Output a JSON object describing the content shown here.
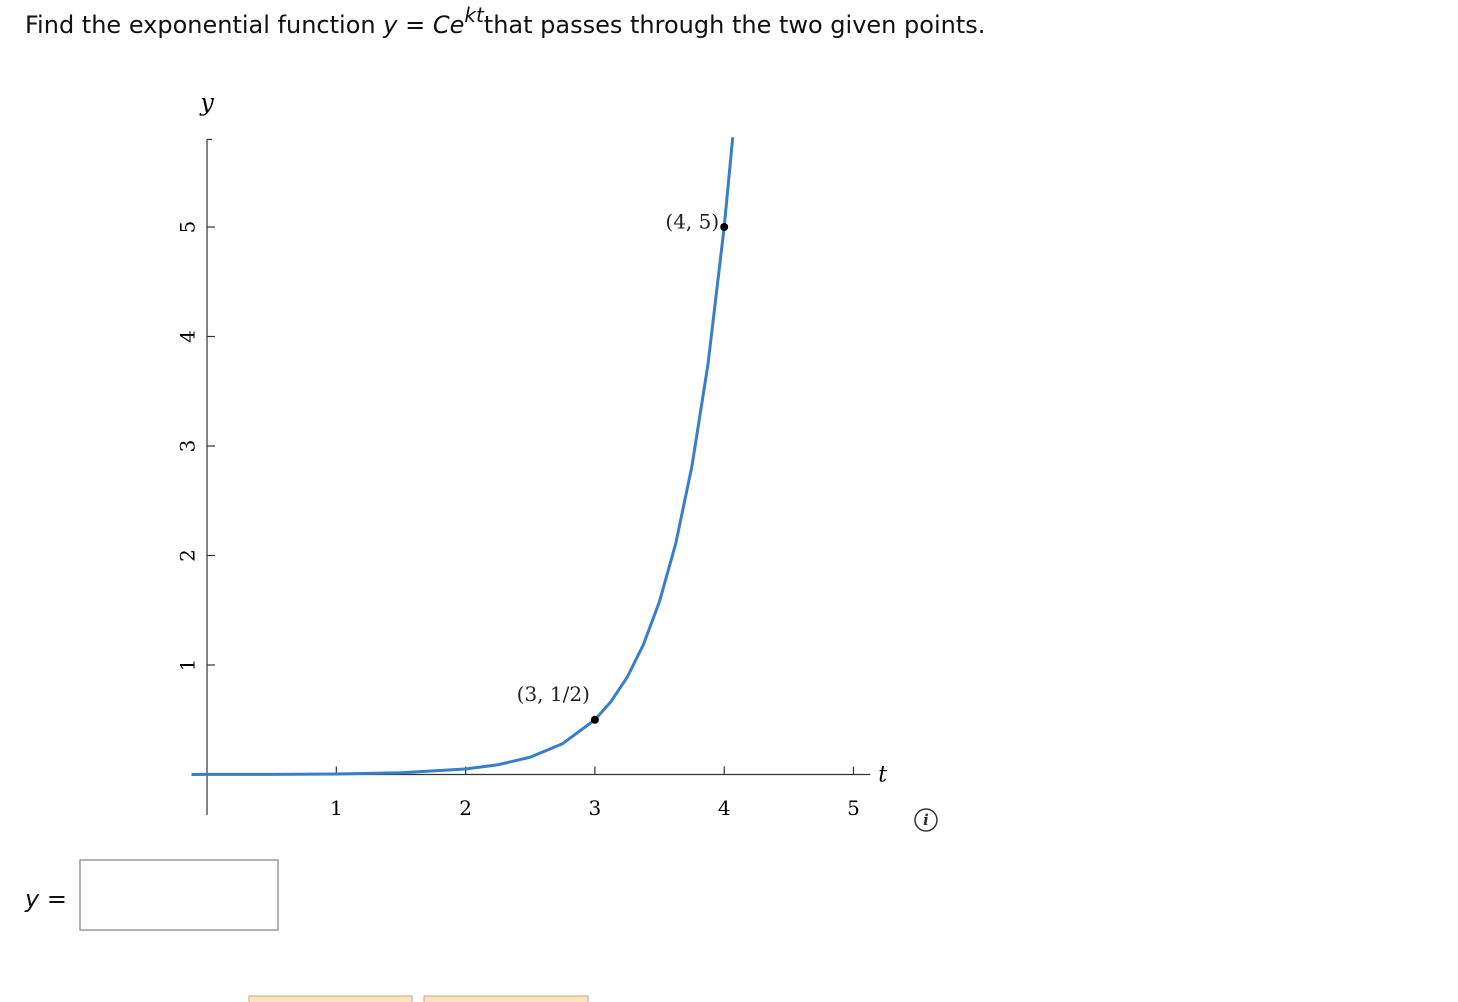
{
  "question": {
    "prefix": "Find the exponential function",
    "lhs": "y",
    "eq": "=",
    "base": "Ce",
    "exponent": "kt",
    "suffix": "that passes through the two given points."
  },
  "chart_data": {
    "type": "line",
    "x_label": "t",
    "y_label": "y",
    "x": [
      -0.12,
      0,
      0.5,
      1,
      1.5,
      2,
      2.25,
      2.5,
      2.75,
      3,
      3.125,
      3.25,
      3.375,
      3.5,
      3.625,
      3.75,
      3.875,
      4,
      4.066
    ],
    "series": [
      {
        "color": "#3a7dc9",
        "values": [
          0.00038,
          0.0005,
          0.00158,
          0.005,
          0.0158,
          0.05,
          0.0889,
          0.158,
          0.281,
          0.5,
          0.667,
          0.889,
          1.186,
          1.581,
          2.108,
          2.812,
          3.749,
          5,
          5.82
        ]
      }
    ],
    "points": [
      {
        "x": 3,
        "y": 0.5,
        "label": "(3, 1/2)"
      },
      {
        "x": 4,
        "y": 5,
        "label": "(4, 5)"
      }
    ],
    "xlim": [
      -0.12,
      5.13
    ],
    "ylim": [
      -0.37,
      5.8
    ],
    "xticks": [
      1,
      2,
      3,
      4,
      5
    ],
    "yticks": [
      1,
      2,
      3,
      4,
      5
    ]
  },
  "answer": {
    "label_var": "y",
    "label_eq": "="
  }
}
